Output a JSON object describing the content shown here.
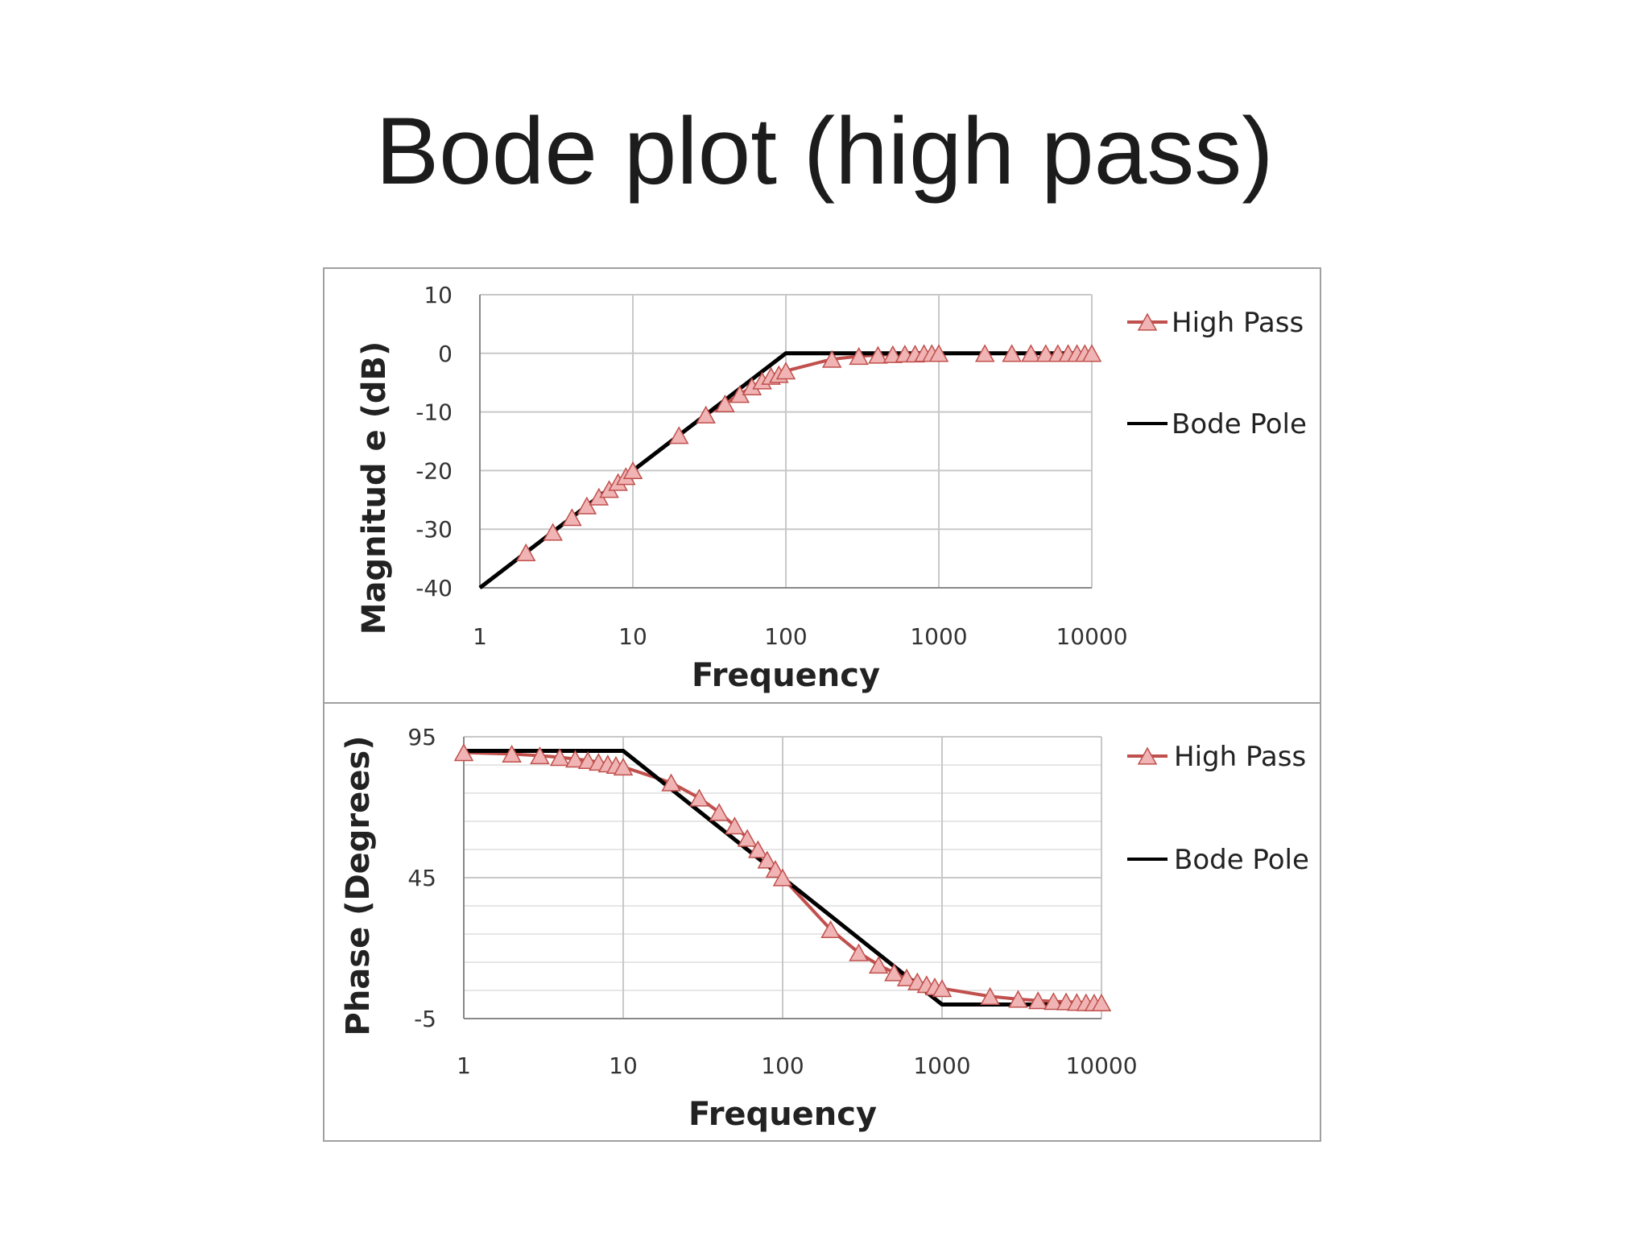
{
  "title": "Bode plot (high pass)",
  "colors": {
    "high_pass": "#c0504d",
    "marker_fill": "#f0b4b4",
    "bode_pole": "#000000",
    "grid": "#c8c8c8",
    "frame": "#a0a0a0"
  },
  "chart_data": [
    {
      "type": "line",
      "xscale": "log",
      "xlabel": "Frequency",
      "ylabel": "Magnitud e (dB)",
      "xlim": [
        1,
        10000
      ],
      "ylim": [
        -40,
        10
      ],
      "xticks": [
        "1",
        "10",
        "100",
        "1000",
        "10000"
      ],
      "yticks": [
        "10",
        "0",
        "-10",
        "-20",
        "-30",
        "-40"
      ],
      "yticks_values": [
        10,
        0,
        -10,
        -20,
        -30,
        -40
      ],
      "grid": true,
      "legend_placement": "right",
      "series": [
        {
          "name": "High Pass",
          "marker": "triangle",
          "x": [
            2,
            3,
            4,
            5,
            6,
            7,
            8,
            9,
            10,
            20,
            30,
            40,
            50,
            60,
            70,
            80,
            90,
            100,
            200,
            300,
            400,
            500,
            600,
            700,
            800,
            900,
            1000,
            2000,
            3000,
            4000,
            5000,
            6000,
            7000,
            8000,
            9000,
            10000
          ],
          "y": [
            -34,
            -30.5,
            -28,
            -26,
            -24.5,
            -23.2,
            -22,
            -21,
            -20,
            -14,
            -10.5,
            -8.6,
            -7,
            -5.7,
            -4.7,
            -3.9,
            -3.6,
            -3,
            -1,
            -0.5,
            -0.3,
            -0.2,
            -0.1,
            -0.1,
            0,
            0,
            0,
            0,
            0,
            0,
            0,
            0,
            0,
            0,
            0,
            0
          ]
        },
        {
          "name": "Bode Pole",
          "marker": "none",
          "x": [
            1,
            100,
            10000
          ],
          "y": [
            -40,
            0,
            0
          ]
        }
      ]
    },
    {
      "type": "line",
      "xscale": "log",
      "xlabel": "Frequency",
      "ylabel": "Phase (Degrees)",
      "xlim": [
        1,
        10000
      ],
      "ylim": [
        -5,
        95
      ],
      "xticks": [
        "1",
        "10",
        "100",
        "1000",
        "10000"
      ],
      "yticks": [
        "95",
        "45",
        "-5"
      ],
      "yticks_values": [
        95,
        45,
        -5
      ],
      "grid": true,
      "legend_placement": "right",
      "series": [
        {
          "name": "High Pass",
          "marker": "triangle",
          "x": [
            1,
            2,
            3,
            4,
            5,
            6,
            7,
            8,
            9,
            10,
            20,
            30,
            40,
            50,
            60,
            70,
            80,
            90,
            100,
            200,
            300,
            400,
            500,
            600,
            700,
            800,
            900,
            1000,
            2000,
            3000,
            4000,
            5000,
            6000,
            7000,
            8000,
            9000,
            10000
          ],
          "y": [
            89.4,
            88.9,
            88.3,
            87.7,
            87.1,
            86.6,
            86,
            85.4,
            84.9,
            84.3,
            78.7,
            73.3,
            68.2,
            63.4,
            59,
            55,
            51.3,
            48,
            45,
            26.6,
            18.4,
            14,
            11.3,
            9.5,
            8.1,
            7.1,
            6.3,
            5.7,
            2.9,
            1.9,
            1.4,
            1.1,
            1,
            0.8,
            0.7,
            0.6,
            0.6
          ]
        },
        {
          "name": "Bode Pole",
          "marker": "none",
          "x": [
            1,
            10,
            1000,
            10000
          ],
          "y": [
            90,
            90,
            0,
            0
          ]
        }
      ]
    }
  ]
}
